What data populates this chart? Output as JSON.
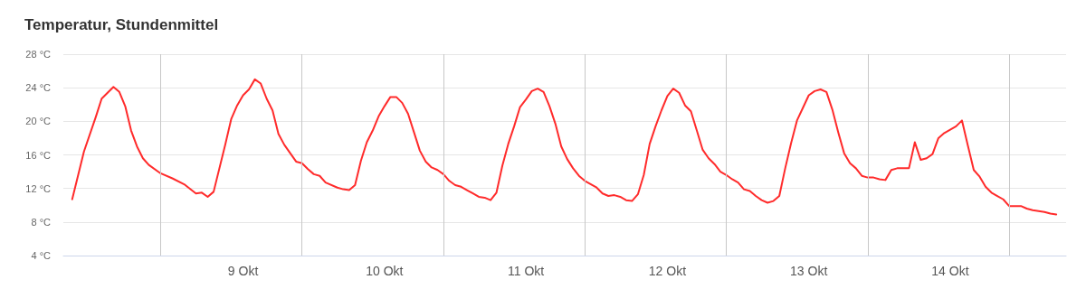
{
  "chart_data": {
    "type": "line",
    "title": "Temperatur, Stundenmittel",
    "x": [
      "--10-08T09:00",
      "--10-08T11:00",
      "--10-08T13:00",
      "--10-08T14:00",
      "--10-08T16:00",
      "--10-08T17:00",
      "--10-08T18:00",
      "--10-08T19:00",
      "--10-08T20:00",
      "--10-08T21:00",
      "--10-08T22:00",
      "--10-09T00:00",
      "--10-09T02:00",
      "--10-09T04:00",
      "--10-09T06:00",
      "--10-09T07:00",
      "--10-09T08:00",
      "--10-09T09:00",
      "--10-09T11:00",
      "--10-09T12:00",
      "--10-09T13:00",
      "--10-09T14:00",
      "--10-09T15:00",
      "--10-09T16:00",
      "--10-09T17:00",
      "--10-09T18:00",
      "--10-09T19:00",
      "--10-09T20:00",
      "--10-09T21:00",
      "--10-09T23:00",
      "--10-10T00:00",
      "--10-10T01:00",
      "--10-10T02:00",
      "--10-10T03:00",
      "--10-10T04:00",
      "--10-10T06:00",
      "--10-10T07:00",
      "--10-10T08:00",
      "--10-10T09:00",
      "--10-10T10:00",
      "--10-10T11:00",
      "--10-10T12:00",
      "--10-10T13:00",
      "--10-10T14:00",
      "--10-10T15:00",
      "--10-10T16:00",
      "--10-10T17:00",
      "--10-10T18:00",
      "--10-10T19:00",
      "--10-10T20:00",
      "--10-10T21:00",
      "--10-10T22:00",
      "--10-10T23:00",
      "--10-11T00:00",
      "--10-11T01:00",
      "--10-11T02:00",
      "--10-11T03:00",
      "--10-11T04:00",
      "--10-11T05:00",
      "--10-11T06:00",
      "--10-11T07:00",
      "--10-11T08:00",
      "--10-11T09:00",
      "--10-11T10:00",
      "--10-11T11:00",
      "--10-11T12:00",
      "--10-11T13:00",
      "--10-11T14:00",
      "--10-11T15:00",
      "--10-11T16:00",
      "--10-11T17:00",
      "--10-11T18:00",
      "--10-11T19:00",
      "--10-11T20:00",
      "--10-11T21:00",
      "--10-11T22:00",
      "--10-11T23:00",
      "--10-12T00:00",
      "--10-12T02:00",
      "--10-12T03:00",
      "--10-12T04:00",
      "--10-12T05:00",
      "--10-12T06:00",
      "--10-12T07:00",
      "--10-12T08:00",
      "--10-12T09:00",
      "--10-12T10:00",
      "--10-12T11:00",
      "--10-12T12:00",
      "--10-12T13:00",
      "--10-12T14:00",
      "--10-12T15:00",
      "--10-12T16:00",
      "--10-12T17:00",
      "--10-12T18:00",
      "--10-12T19:00",
      "--10-12T20:00",
      "--10-12T21:00",
      "--10-12T22:00",
      "--10-12T23:00",
      "--10-13T00:00",
      "--10-13T01:00",
      "--10-13T02:00",
      "--10-13T03:00",
      "--10-13T04:00",
      "--10-13T05:00",
      "--10-13T06:00",
      "--10-13T07:00",
      "--10-13T08:00",
      "--10-13T09:00",
      "--10-13T10:00",
      "--10-13T11:00",
      "--10-13T12:00",
      "--10-13T13:00",
      "--10-13T14:00",
      "--10-13T15:00",
      "--10-13T16:00",
      "--10-13T17:00",
      "--10-13T18:00",
      "--10-13T19:00",
      "--10-13T20:00",
      "--10-13T21:00",
      "--10-13T22:00",
      "--10-13T23:00",
      "--10-14T00:00",
      "--10-14T01:00",
      "--10-14T02:00",
      "--10-14T03:00",
      "--10-14T04:00",
      "--10-14T05:00",
      "--10-14T06:00",
      "--10-14T07:00",
      "--10-14T08:00",
      "--10-14T09:00",
      "--10-14T10:00",
      "--10-14T11:00",
      "--10-14T12:00",
      "--10-14T13:00",
      "--10-14T14:00",
      "--10-14T15:00",
      "--10-14T16:00",
      "--10-14T17:00",
      "--10-14T18:00",
      "--10-14T19:00",
      "--10-14T20:00",
      "--10-14T21:00",
      "--10-14T22:00",
      "--10-14T23:00",
      "--10-15T00:00",
      "--10-15T01:00",
      "--10-15T02:00",
      "--10-15T03:00",
      "--10-15T04:00",
      "--10-15T06:00",
      "--10-15T07:00",
      "--10-15T08:00"
    ],
    "series": [
      {
        "color": "#ff2b2b",
        "values": [
          10.7,
          16.4,
          20.5,
          22.7,
          24.1,
          23.5,
          21.8,
          18.9,
          17.0,
          15.6,
          14.8,
          13.8,
          13.2,
          12.5,
          11.4,
          11.5,
          11.0,
          11.6,
          17.3,
          20.3,
          21.9,
          23.1,
          23.8,
          25.0,
          24.5,
          22.7,
          21.3,
          18.5,
          17.2,
          15.2,
          15.0,
          14.3,
          13.7,
          13.5,
          12.7,
          12.1,
          11.9,
          11.8,
          12.4,
          15.3,
          17.5,
          18.9,
          20.6,
          21.8,
          22.9,
          22.9,
          22.2,
          20.9,
          18.7,
          16.5,
          15.2,
          14.5,
          14.2,
          13.7,
          12.9,
          12.4,
          12.2,
          11.8,
          11.4,
          11.0,
          10.9,
          10.6,
          11.5,
          14.7,
          17.3,
          19.4,
          21.7,
          22.6,
          23.6,
          23.9,
          23.5,
          21.8,
          19.7,
          17.0,
          15.5,
          14.4,
          13.5,
          12.9,
          12.1,
          11.4,
          11.1,
          11.2,
          11.0,
          10.6,
          10.5,
          11.3,
          13.6,
          17.3,
          19.4,
          21.3,
          23.0,
          23.9,
          23.4,
          21.9,
          21.2,
          18.9,
          16.6,
          15.6,
          14.9,
          14.0,
          13.6,
          13.1,
          12.7,
          11.9,
          11.7,
          11.1,
          10.6,
          10.3,
          10.5,
          11.1,
          14.4,
          17.4,
          20.1,
          21.6,
          23.1,
          23.6,
          23.8,
          23.5,
          21.4,
          18.7,
          16.2,
          15.0,
          14.4,
          13.5,
          13.3,
          13.3,
          13.1,
          13.0,
          14.2,
          14.4,
          14.4,
          14.4,
          17.5,
          15.4,
          15.6,
          16.1,
          18.0,
          18.6,
          19.0,
          19.4,
          20.1,
          17.1,
          14.2,
          13.4,
          12.2,
          11.5,
          11.1,
          10.7,
          9.9,
          9.9,
          9.9,
          9.6,
          9.4,
          9.2,
          9.0,
          8.9
        ]
      }
    ],
    "xlim": [
      "--10-08T07:30",
      "--10-15T09:40"
    ],
    "xticks": [
      {
        "value": "--10-09T14:00",
        "label": "9 Okt"
      },
      {
        "value": "--10-10T14:00",
        "label": "10 Okt"
      },
      {
        "value": "--10-11T14:00",
        "label": "11 Okt"
      },
      {
        "value": "--10-12T14:00",
        "label": "12 Okt"
      },
      {
        "value": "--10-13T14:00",
        "label": "13 Okt"
      },
      {
        "value": "--10-14T14:00",
        "label": "14 Okt"
      }
    ],
    "ylim": [
      4,
      28
    ],
    "yticks": [
      {
        "value": 4,
        "label": "4 °C"
      },
      {
        "value": 8,
        "label": "8 °C"
      },
      {
        "value": 12,
        "label": "12 °C"
      },
      {
        "value": 16,
        "label": "16 °C"
      },
      {
        "value": 20,
        "label": "20 °C"
      },
      {
        "value": 24,
        "label": "24 °C"
      },
      {
        "value": 28,
        "label": "28 °C"
      }
    ],
    "ref_lines": [
      {
        "axis": "x",
        "value": "--10-09T00:00",
        "color": "#c8c8c8"
      },
      {
        "axis": "x",
        "value": "--10-10T00:00",
        "color": "#c8c8c8"
      },
      {
        "axis": "x",
        "value": "--10-11T00:00",
        "color": "#c8c8c8"
      },
      {
        "axis": "x",
        "value": "--10-12T00:00",
        "color": "#c8c8c8"
      },
      {
        "axis": "x",
        "value": "--10-13T00:00",
        "color": "#c8c8c8"
      },
      {
        "axis": "x",
        "value": "--10-14T00:00",
        "color": "#c8c8c8"
      },
      {
        "axis": "x",
        "value": "--10-15T00:00",
        "color": "#c8c8c8"
      }
    ],
    "grid": "y",
    "marker": "none",
    "line_style": "solid"
  }
}
